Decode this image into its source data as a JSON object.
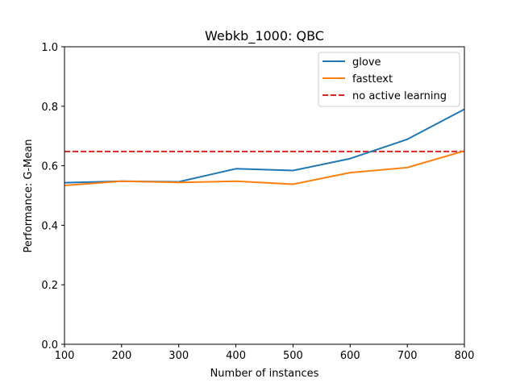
{
  "chart_data": {
    "type": "line",
    "title": "Webkb_1000: QBC",
    "xlabel": "Number of instances",
    "ylabel": "Performance: G-Mean",
    "xlim": [
      100,
      800
    ],
    "ylim": [
      0.0,
      1.0
    ],
    "x_ticks": [
      "100",
      "200",
      "300",
      "400",
      "500",
      "600",
      "700",
      "800"
    ],
    "y_ticks": [
      "0.0",
      "0.2",
      "0.4",
      "0.6",
      "0.8",
      "1.0"
    ],
    "x": [
      100,
      200,
      300,
      400,
      500,
      600,
      700,
      800
    ],
    "series": [
      {
        "name": "glove",
        "color": "#1f77b4",
        "style": "solid",
        "values": [
          0.543,
          0.548,
          0.546,
          0.59,
          0.584,
          0.624,
          0.689,
          0.79
        ]
      },
      {
        "name": "fasttext",
        "color": "#ff7f0e",
        "style": "solid",
        "values": [
          0.534,
          0.548,
          0.544,
          0.548,
          0.538,
          0.577,
          0.594,
          0.65
        ]
      }
    ],
    "reference_line": {
      "name": "no active learning",
      "color": "#d62728",
      "style": "dashed",
      "value": 0.648
    },
    "legend": {
      "placement": "top-right",
      "entries": [
        "glove",
        "fasttext",
        "no active learning"
      ]
    },
    "grid": false
  }
}
